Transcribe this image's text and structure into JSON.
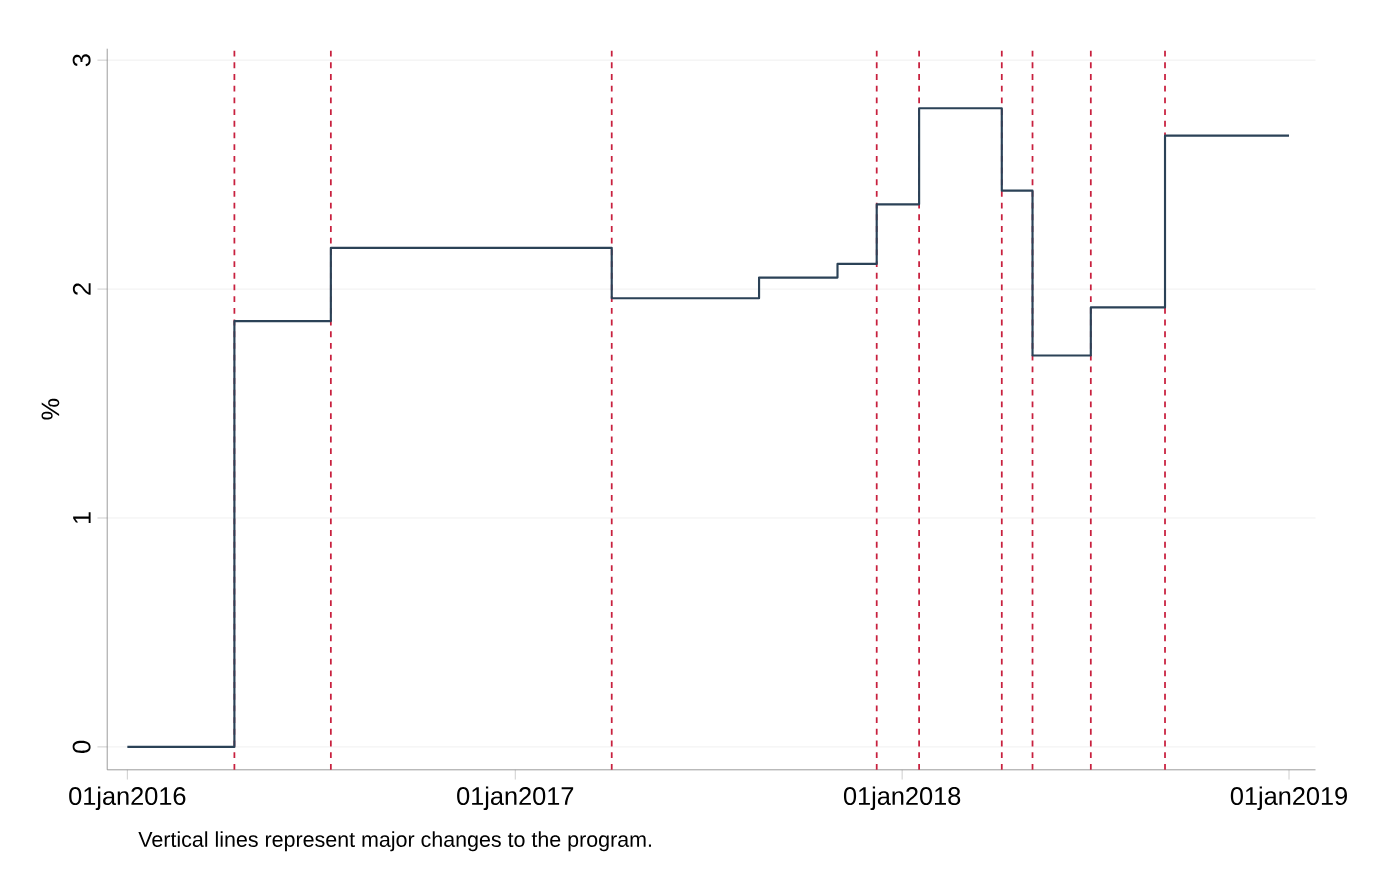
{
  "chart_data": {
    "type": "step",
    "ylabel": "%",
    "annotations": [
      "Vertical lines represent major changes to the program."
    ],
    "x": [
      "2016-01-01",
      "2016-04-11",
      "2016-07-11",
      "2017-04-02",
      "2017-08-19",
      "2017-11-01",
      "2017-12-08",
      "2018-01-17",
      "2018-04-05",
      "2018-05-04",
      "2018-06-28",
      "2018-09-06",
      "2019-01-01"
    ],
    "series": [
      {
        "color": "#2b4257",
        "values": [
          0,
          1.86,
          2.18,
          1.96,
          2.05,
          2.11,
          2.37,
          2.79,
          2.43,
          1.71,
          1.92,
          2.67,
          2.67
        ]
      }
    ],
    "xlim": [
      "2015-12-13",
      "2019-01-26"
    ],
    "xticks": [
      {
        "value": "2016-01-01",
        "label": "01jan2016"
      },
      {
        "value": "2017-01-01",
        "label": "01jan2017"
      },
      {
        "value": "2018-01-01",
        "label": "01jan2018"
      },
      {
        "value": "2019-01-01",
        "label": "01jan2019"
      }
    ],
    "ylim": [
      -0.1,
      3.05
    ],
    "yticks": [
      0,
      1,
      2,
      3
    ],
    "grid": "y",
    "ref_lines": [
      {
        "axis": "x",
        "value": "2016-04-11",
        "color": "#c8203e",
        "line_style": "dashed"
      },
      {
        "axis": "x",
        "value": "2016-07-11",
        "color": "#c8203e",
        "line_style": "dashed"
      },
      {
        "axis": "x",
        "value": "2017-04-02",
        "color": "#c8203e",
        "line_style": "dashed"
      },
      {
        "axis": "x",
        "value": "2017-12-08",
        "color": "#c8203e",
        "line_style": "dashed"
      },
      {
        "axis": "x",
        "value": "2018-01-17",
        "color": "#c8203e",
        "line_style": "dashed"
      },
      {
        "axis": "x",
        "value": "2018-04-05",
        "color": "#c8203e",
        "line_style": "dashed"
      },
      {
        "axis": "x",
        "value": "2018-05-04",
        "color": "#c8203e",
        "line_style": "dashed"
      },
      {
        "axis": "x",
        "value": "2018-06-28",
        "color": "#c8203e",
        "line_style": "dashed"
      },
      {
        "axis": "x",
        "value": "2018-09-06",
        "color": "#c8203e",
        "line_style": "dashed"
      }
    ]
  }
}
